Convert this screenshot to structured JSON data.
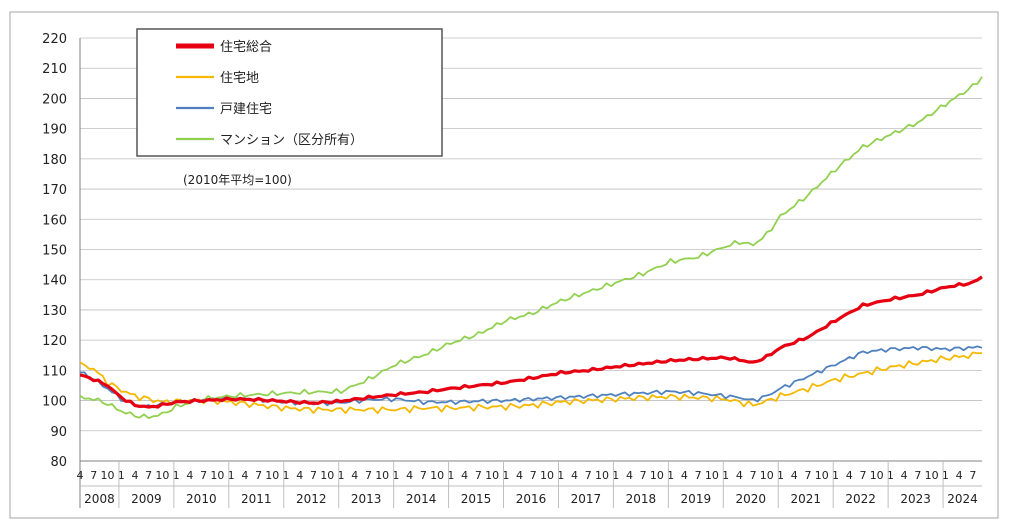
{
  "chart_data": {
    "type": "line",
    "note": "(2010年平均=100)",
    "ylim": [
      80,
      220
    ],
    "yticks": [
      80,
      90,
      100,
      110,
      120,
      130,
      140,
      150,
      160,
      170,
      180,
      190,
      200,
      210,
      220
    ],
    "years": [
      "2008",
      "2009",
      "2010",
      "2011",
      "2012",
      "2013",
      "2014",
      "2015",
      "2016",
      "2017",
      "2018",
      "2019",
      "2020",
      "2021",
      "2022",
      "2023",
      "2024"
    ],
    "month_ticks": [
      "1",
      "4",
      "7",
      "10"
    ],
    "first_month": "2008-04",
    "legend": {
      "position": "top-left",
      "entries": [
        "住宅総合",
        "住宅地",
        "戸建住宅",
        "マンション（区分所有）"
      ]
    },
    "series": [
      {
        "name": "住宅総合",
        "color": "#e60012",
        "anchors": [
          [
            "2008-04",
            108.5
          ],
          [
            "2008-07",
            107
          ],
          [
            "2008-10",
            105
          ],
          [
            "2009-01",
            101
          ],
          [
            "2009-04",
            98.5
          ],
          [
            "2009-07",
            97.8
          ],
          [
            "2009-10",
            98.5
          ],
          [
            "2010-01",
            99.5
          ],
          [
            "2010-07",
            100
          ],
          [
            "2011-01",
            100.5
          ],
          [
            "2011-07",
            100.3
          ],
          [
            "2012-01",
            99.7
          ],
          [
            "2012-07",
            99.2
          ],
          [
            "2013-01",
            99.8
          ],
          [
            "2013-07",
            101
          ],
          [
            "2014-01",
            102
          ],
          [
            "2014-07",
            102.8
          ],
          [
            "2015-01",
            104
          ],
          [
            "2015-07",
            105
          ],
          [
            "2016-01",
            106
          ],
          [
            "2016-07",
            107.5
          ],
          [
            "2017-01",
            109.2
          ],
          [
            "2017-07",
            110
          ],
          [
            "2018-01",
            111.2
          ],
          [
            "2018-07",
            112.2
          ],
          [
            "2019-01",
            113.2
          ],
          [
            "2019-07",
            113.8
          ],
          [
            "2020-01",
            114.2
          ],
          [
            "2020-04",
            113.5
          ],
          [
            "2020-07",
            112.5
          ],
          [
            "2020-10",
            114.5
          ],
          [
            "2021-01",
            117.5
          ],
          [
            "2021-07",
            121
          ],
          [
            "2022-01",
            126.5
          ],
          [
            "2022-07",
            131.5
          ],
          [
            "2023-01",
            133.5
          ],
          [
            "2023-07",
            135
          ],
          [
            "2024-01",
            137.5
          ],
          [
            "2024-07",
            139
          ],
          [
            "2024-09",
            141
          ]
        ]
      },
      {
        "name": "住宅地",
        "color": "#f5b800",
        "anchors": [
          [
            "2008-04",
            112
          ],
          [
            "2008-07",
            110.5
          ],
          [
            "2008-10",
            106
          ],
          [
            "2009-01",
            103.5
          ],
          [
            "2009-04",
            101.5
          ],
          [
            "2009-07",
            100.5
          ],
          [
            "2009-10",
            99.5
          ],
          [
            "2010-01",
            99.8
          ],
          [
            "2010-07",
            100
          ],
          [
            "2011-01",
            99.5
          ],
          [
            "2011-07",
            98.5
          ],
          [
            "2012-01",
            97.5
          ],
          [
            "2012-07",
            97
          ],
          [
            "2013-01",
            97
          ],
          [
            "2013-07",
            97
          ],
          [
            "2014-01",
            97
          ],
          [
            "2014-07",
            97.5
          ],
          [
            "2015-01",
            97.5
          ],
          [
            "2015-07",
            97.8
          ],
          [
            "2016-01",
            98
          ],
          [
            "2016-07",
            98.5
          ],
          [
            "2017-01",
            99.5
          ],
          [
            "2017-07",
            100
          ],
          [
            "2018-01",
            100.5
          ],
          [
            "2018-07",
            101
          ],
          [
            "2019-01",
            101.3
          ],
          [
            "2019-07",
            101
          ],
          [
            "2020-01",
            100.5
          ],
          [
            "2020-04",
            99.5
          ],
          [
            "2020-07",
            98.5
          ],
          [
            "2020-10",
            99.8
          ],
          [
            "2021-01",
            101.5
          ],
          [
            "2021-07",
            104
          ],
          [
            "2022-01",
            107
          ],
          [
            "2022-07",
            109
          ],
          [
            "2023-01",
            111
          ],
          [
            "2023-07",
            112.5
          ],
          [
            "2024-01",
            114
          ],
          [
            "2024-07",
            115
          ],
          [
            "2024-09",
            116.5
          ]
        ]
      },
      {
        "name": "戸建住宅",
        "color": "#4f81bd",
        "anchors": [
          [
            "2008-04",
            109.5
          ],
          [
            "2008-07",
            107
          ],
          [
            "2008-10",
            104
          ],
          [
            "2009-01",
            100.5
          ],
          [
            "2009-04",
            98.5
          ],
          [
            "2009-07",
            98
          ],
          [
            "2009-10",
            98.8
          ],
          [
            "2010-01",
            99.5
          ],
          [
            "2010-07",
            100.2
          ],
          [
            "2011-01",
            100.8
          ],
          [
            "2011-07",
            100.3
          ],
          [
            "2012-01",
            99.5
          ],
          [
            "2012-07",
            99
          ],
          [
            "2013-01",
            99.3
          ],
          [
            "2013-07",
            100.3
          ],
          [
            "2014-01",
            100.5
          ],
          [
            "2014-07",
            99.5
          ],
          [
            "2015-01",
            99.5
          ],
          [
            "2015-07",
            99.8
          ],
          [
            "2016-01",
            100
          ],
          [
            "2016-07",
            100.5
          ],
          [
            "2017-01",
            101
          ],
          [
            "2017-07",
            101.5
          ],
          [
            "2018-01",
            102
          ],
          [
            "2018-07",
            102.5
          ],
          [
            "2019-01",
            103
          ],
          [
            "2019-07",
            102.5
          ],
          [
            "2020-01",
            101.5
          ],
          [
            "2020-04",
            101
          ],
          [
            "2020-07",
            100
          ],
          [
            "2020-10",
            101.5
          ],
          [
            "2021-01",
            104
          ],
          [
            "2021-07",
            108
          ],
          [
            "2022-01",
            112
          ],
          [
            "2022-07",
            116
          ],
          [
            "2023-01",
            117
          ],
          [
            "2023-07",
            117.5
          ],
          [
            "2024-01",
            117
          ],
          [
            "2024-07",
            117.5
          ],
          [
            "2024-09",
            118
          ]
        ]
      },
      {
        "name": "マンション（区分所有）",
        "color": "#92d050",
        "anchors": [
          [
            "2008-04",
            101
          ],
          [
            "2008-07",
            100.5
          ],
          [
            "2008-10",
            99
          ],
          [
            "2009-01",
            96.5
          ],
          [
            "2009-04",
            95
          ],
          [
            "2009-07",
            94.5
          ],
          [
            "2009-10",
            95.5
          ],
          [
            "2010-01",
            98
          ],
          [
            "2010-07",
            100.5
          ],
          [
            "2011-01",
            101.5
          ],
          [
            "2011-07",
            102
          ],
          [
            "2012-01",
            102.5
          ],
          [
            "2012-07",
            102.8
          ],
          [
            "2013-01",
            103
          ],
          [
            "2013-07",
            107
          ],
          [
            "2014-01",
            112
          ],
          [
            "2014-07",
            115
          ],
          [
            "2015-01",
            119
          ],
          [
            "2015-07",
            122
          ],
          [
            "2016-01",
            126.5
          ],
          [
            "2016-07",
            129
          ],
          [
            "2017-01",
            133
          ],
          [
            "2017-07",
            136
          ],
          [
            "2018-01",
            139
          ],
          [
            "2018-07",
            142
          ],
          [
            "2019-01",
            146
          ],
          [
            "2019-07",
            147.5
          ],
          [
            "2020-01",
            151
          ],
          [
            "2020-04",
            152.5
          ],
          [
            "2020-07",
            151.5
          ],
          [
            "2020-10",
            155
          ],
          [
            "2021-01",
            161
          ],
          [
            "2021-07",
            168
          ],
          [
            "2022-01",
            176.5
          ],
          [
            "2022-07",
            184
          ],
          [
            "2023-01",
            188
          ],
          [
            "2023-07",
            192
          ],
          [
            "2024-01",
            198
          ],
          [
            "2024-07",
            204
          ],
          [
            "2024-09",
            207
          ]
        ]
      }
    ]
  }
}
